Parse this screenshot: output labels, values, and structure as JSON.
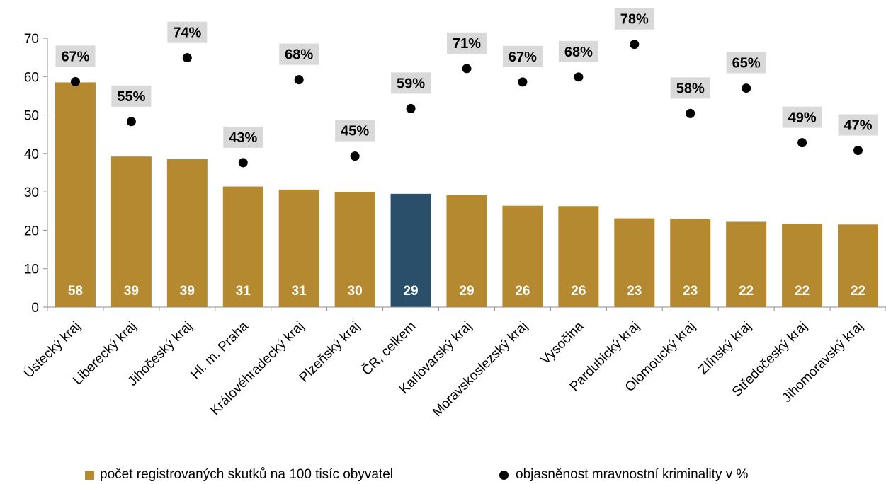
{
  "chart_data": {
    "type": "bar",
    "categories": [
      "Ústecký kraj",
      "Liberecký kraj",
      "Jihočeský kraj",
      "Hl. m. Praha",
      "Královéhradecký kraj",
      "Plzeňský kraj",
      "ČR, celkem",
      "Karlovarský kraj",
      "Moravskoslezský kraj",
      "Vysočina",
      "Pardubický kraj",
      "Olomoucký kraj",
      "Zlínský kraj",
      "Středočeský kraj",
      "Jihomoravský kraj"
    ],
    "highlight_category": "ČR, celkem",
    "ylim": [
      0,
      70
    ],
    "yticks": [
      0,
      10,
      20,
      30,
      40,
      50,
      60,
      70
    ],
    "series": [
      {
        "name": "počet registrovaných skutků na 100 tisíc obyvatel",
        "kind": "bar",
        "color": "#b5892f",
        "highlight_color": "#2a4f6b",
        "values": [
          58.5,
          39.2,
          38.5,
          31.4,
          30.6,
          30.0,
          29.5,
          29.2,
          26.4,
          26.3,
          23.1,
          23.0,
          22.2,
          21.7,
          21.5
        ],
        "labels": [
          "58",
          "39",
          "39",
          "31",
          "31",
          "30",
          "29",
          "29",
          "26",
          "26",
          "23",
          "23",
          "22",
          "22",
          "22"
        ]
      },
      {
        "name": "objasněnost mravnostní kriminality v %",
        "kind": "scatter",
        "color": "#000000",
        "label_bg": "#d9d9d9",
        "values": [
          58.7,
          48.3,
          64.9,
          37.6,
          59.2,
          39.3,
          51.7,
          62.1,
          58.6,
          59.9,
          68.4,
          50.4,
          57.0,
          42.8,
          40.8
        ],
        "labels": [
          "67%",
          "55%",
          "74%",
          "43%",
          "68%",
          "45%",
          "59%",
          "71%",
          "67%",
          "68%",
          "78%",
          "58%",
          "65%",
          "49%",
          "47%"
        ]
      }
    ],
    "legend": {
      "position": "bottom",
      "items": [
        "počet registrovaných skutků na 100 tisíc obyvatel",
        "objasněnost mravnostní kriminality v %"
      ]
    }
  }
}
